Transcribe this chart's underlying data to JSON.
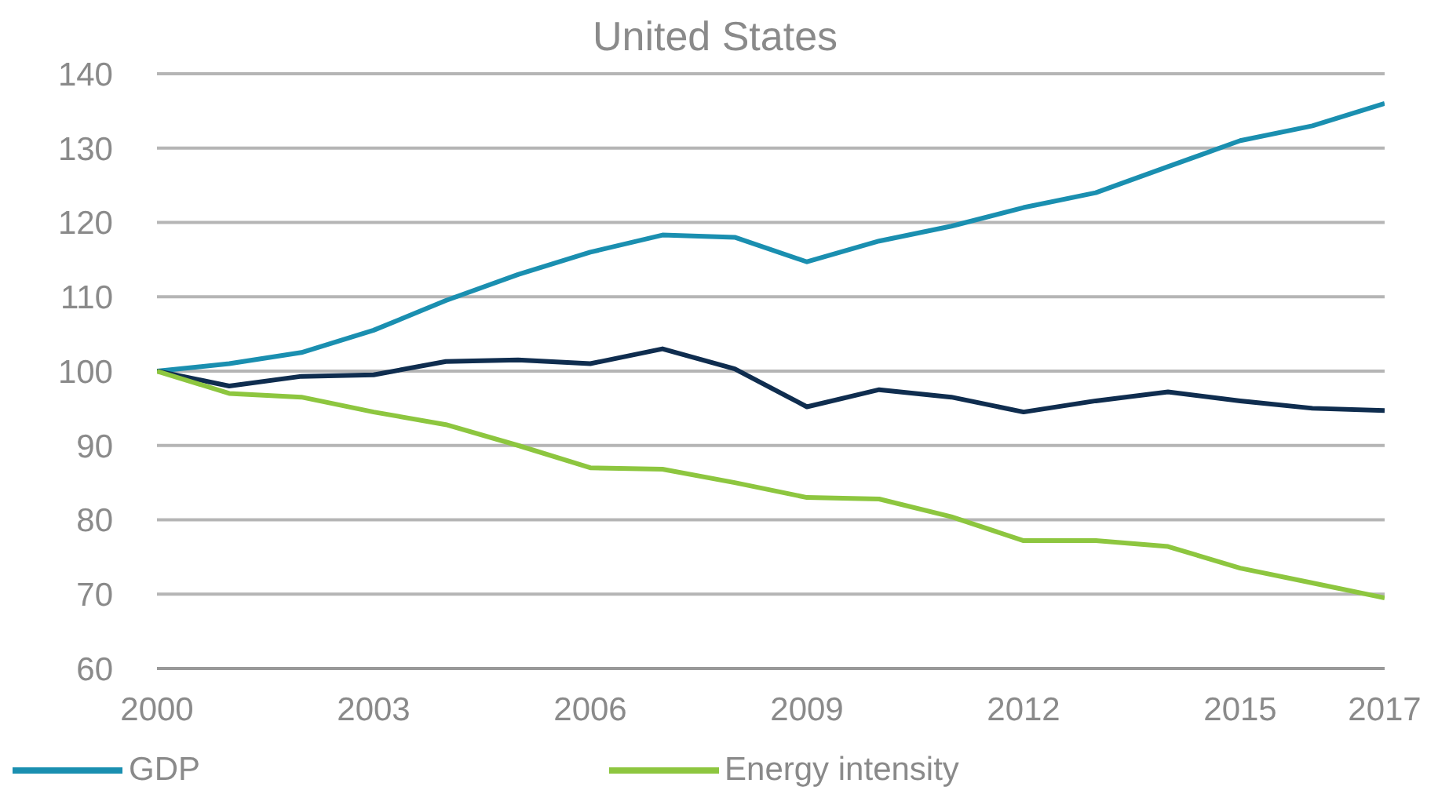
{
  "chart_data": {
    "type": "line",
    "title": "United States",
    "x": [
      2000,
      2001,
      2002,
      2003,
      2004,
      2005,
      2006,
      2007,
      2008,
      2009,
      2010,
      2011,
      2012,
      2013,
      2014,
      2015,
      2016,
      2017
    ],
    "series": [
      {
        "name": "GDP",
        "color": "#1a8fb0",
        "values": [
          100,
          101,
          102.5,
          105.5,
          109.5,
          113,
          116,
          118.3,
          118,
          114.7,
          117.5,
          119.5,
          122,
          124,
          127.5,
          131,
          133,
          136
        ]
      },
      {
        "color": "#0f2d4f",
        "values": [
          100,
          98,
          99.3,
          99.5,
          101.3,
          101.5,
          101,
          103,
          100.3,
          95.2,
          97.5,
          96.5,
          94.5,
          96,
          97.2,
          96,
          95,
          94.7
        ]
      },
      {
        "name": "Energy intensity",
        "color": "#8dc63f",
        "values": [
          100,
          97,
          96.5,
          94.5,
          92.8,
          90,
          87,
          86.8,
          85,
          83,
          82.8,
          80.4,
          77.2,
          77.2,
          76.4,
          73.5,
          71.5,
          69.5
        ]
      }
    ],
    "xlim": [
      2000,
      2017
    ],
    "xticks": [
      2000,
      2003,
      2006,
      2009,
      2012,
      2015,
      2017
    ],
    "ylim": [
      60,
      140
    ],
    "yticks": [
      60,
      70,
      80,
      90,
      100,
      110,
      120,
      130,
      140
    ],
    "grid": "y",
    "legend": "bottom",
    "marker": "none",
    "line_style": "solid"
  }
}
